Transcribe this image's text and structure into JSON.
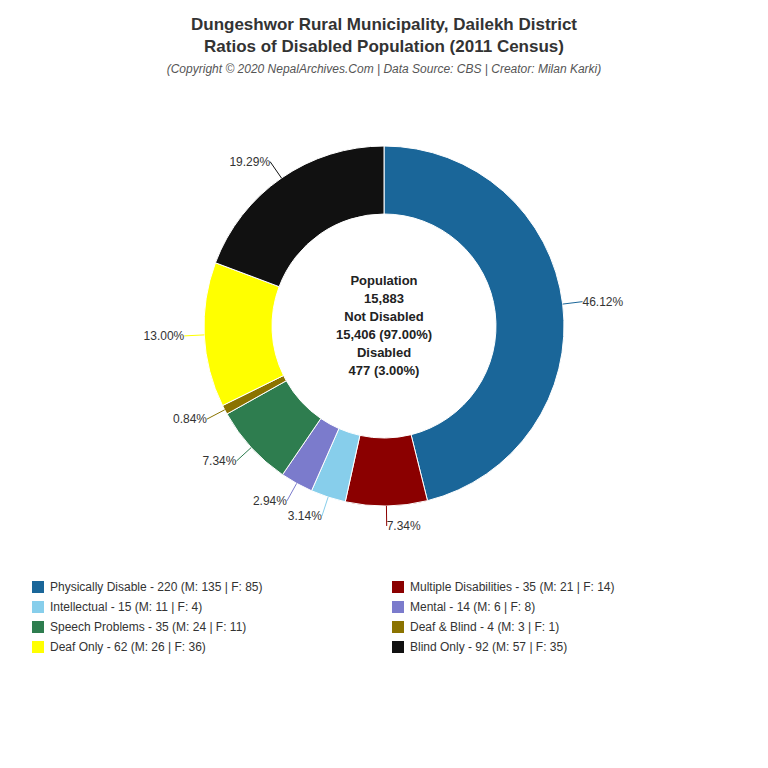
{
  "chart_data": {
    "type": "pie",
    "title": [
      "Dungeshwor Rural Municipality, Dailekh District",
      "Ratios of Disabled Population (2011 Census)"
    ],
    "subtitle": "(Copyright © 2020 NepalArchives.Com | Data Source: CBS | Creator: Milan Karki)",
    "categories": [
      "Physically Disable - 220 (M: 135 | F: 85)",
      "Multiple Disabilities - 35 (M: 21 | F: 14)",
      "Intellectual - 15 (M: 11 | F: 4)",
      "Mental - 14 (M: 6 | F: 8)",
      "Speech Problems - 35 (M: 24 | F: 11)",
      "Deaf & Blind - 4 (M: 3 | F: 1)",
      "Deaf Only - 62 (M: 26 | F: 36)",
      "Blind Only - 92 (M: 57 | F: 35)"
    ],
    "values": [
      46.12,
      7.34,
      3.14,
      2.94,
      7.34,
      0.84,
      13.0,
      19.29
    ],
    "value_labels": [
      "46.12%",
      "7.34%",
      "3.14%",
      "2.94%",
      "7.34%",
      "0.84%",
      "13.00%",
      "19.29%"
    ],
    "colors": [
      "#1a6699",
      "#8b0000",
      "#87ceeb",
      "#7b7bcc",
      "#2e7d4f",
      "#8b7300",
      "#ffff00",
      "#111111"
    ],
    "annotations": [
      "Population",
      "15,883",
      "Not Disabled",
      "15,406 (97.00%)",
      "Disabled",
      "477 (3.00%)"
    ],
    "data_labels": true,
    "legend": "bottom"
  }
}
